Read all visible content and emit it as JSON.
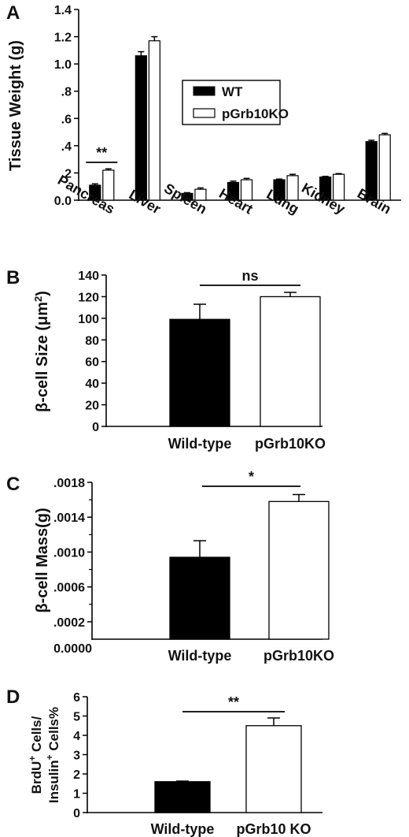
{
  "colors": {
    "wt": "#000000",
    "ko": "#ffffff",
    "stroke": "#000000"
  },
  "chart_data": [
    {
      "panel": "A",
      "type": "bar",
      "ylabel": "Tissue Weight (g)",
      "ylim": [
        0,
        1.4
      ],
      "yticks": [
        "0.0",
        ".2",
        ".4",
        ".6",
        ".8",
        "1.0",
        "1.2",
        "1.4"
      ],
      "categories": [
        "Pancreas",
        "Liver",
        "Spleen",
        "Heart",
        "Lung",
        "Kidney",
        "Brain"
      ],
      "legend_position": "upper-right",
      "series": [
        {
          "name": "WT",
          "values": [
            0.11,
            1.06,
            0.05,
            0.13,
            0.15,
            0.17,
            0.43
          ],
          "errors": [
            0.01,
            0.03,
            0.005,
            0.01,
            0.005,
            0.005,
            0.01
          ]
        },
        {
          "name": "pGrb10KO",
          "values": [
            0.22,
            1.17,
            0.08,
            0.15,
            0.18,
            0.19,
            0.48
          ],
          "errors": [
            0.01,
            0.03,
            0.01,
            0.01,
            0.01,
            0.005,
            0.01
          ]
        }
      ],
      "significance": [
        {
          "category": "Pancreas",
          "label": "**"
        }
      ]
    },
    {
      "panel": "B",
      "type": "bar",
      "ylabel_main": "β-cell Size (μm",
      "ylabel_sup": "2",
      "ylabel_tail": ")",
      "ylim": [
        0,
        140
      ],
      "yticks": [
        "0",
        "20",
        "40",
        "60",
        "80",
        "100",
        "120",
        "140"
      ],
      "categories": [
        "Wild-type",
        "pGrb10KO"
      ],
      "values": [
        99,
        120
      ],
      "errors": [
        14,
        4
      ],
      "significance": {
        "label": "ns"
      }
    },
    {
      "panel": "C",
      "type": "bar",
      "ylabel": "β-cell Mass(g)",
      "ylim": [
        0,
        0.0018
      ],
      "yticks": [
        ".0018",
        ".0014",
        ".0010",
        ".0006",
        ".0002"
      ],
      "ybase": "0.0000",
      "categories": [
        "Wild-type",
        "pGrb10KO"
      ],
      "values": [
        0.00094,
        0.00158
      ],
      "errors": [
        0.00019,
        8e-05
      ],
      "significance": {
        "label": "*"
      }
    },
    {
      "panel": "D",
      "type": "bar",
      "ylabel_line1_pre": "BrdU",
      "ylabel_line1_sup": "+",
      "ylabel_line1_post": " Cells/",
      "ylabel_line2_pre": "Insulin",
      "ylabel_line2_sup": "+",
      "ylabel_line2_post": " Cells%",
      "ylim": [
        0,
        6
      ],
      "yticks": [
        "0",
        "1",
        "2",
        "3",
        "4",
        "5",
        "6"
      ],
      "categories": [
        "Wild-type",
        "pGrb10 KO"
      ],
      "values": [
        1.6,
        4.5
      ],
      "errors": [
        0.03,
        0.4
      ],
      "significance": {
        "label": "**"
      }
    }
  ]
}
